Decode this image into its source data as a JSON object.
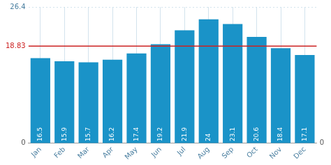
{
  "chart_data": {
    "type": "bar",
    "categories": [
      "Jan",
      "Feb",
      "Mar",
      "Apr",
      "May",
      "Jun",
      "Jul",
      "Aug",
      "Sep",
      "Oct",
      "Nov",
      "Dec"
    ],
    "values": [
      16.5,
      15.9,
      15.7,
      16.2,
      17.4,
      19.2,
      21.9,
      24.0,
      23.1,
      20.6,
      18.4,
      17.1
    ],
    "color": "#1a93c8",
    "ylim": [
      0,
      26.4
    ],
    "yticks": [
      0,
      18.83,
      26.4
    ],
    "y2lim": [
      0,
      26.4
    ],
    "y2ticks": [
      0
    ],
    "avg_line": {
      "value": 18.83,
      "color": "#cc2222"
    },
    "grid": true,
    "data_labels": true
  }
}
